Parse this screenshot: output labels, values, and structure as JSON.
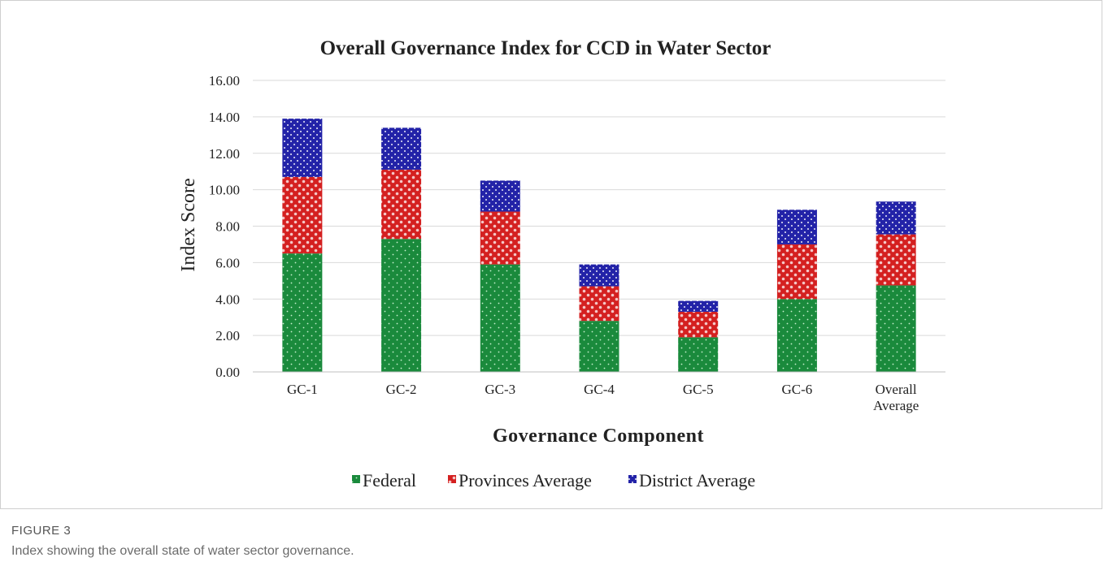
{
  "figure": {
    "label": "FIGURE 3",
    "caption": "Index showing the overall state of water sector governance."
  },
  "chart_data": {
    "type": "bar",
    "stacked": true,
    "title": "Overall Governance Index for CCD in Water Sector",
    "xlabel": "Governance Component",
    "ylabel": "Index Score",
    "ylim": [
      0,
      16
    ],
    "yticks": [
      "0.00",
      "2.00",
      "4.00",
      "6.00",
      "8.00",
      "10.00",
      "12.00",
      "14.00",
      "16.00"
    ],
    "grid": true,
    "legend_position": "bottom",
    "categories": [
      "GC-1",
      "GC-2",
      "GC-3",
      "GC-4",
      "GC-5",
      "GC-6",
      "Overall Average"
    ],
    "series": [
      {
        "name": "Federal",
        "color": "#1a8a3c",
        "pattern": "dots",
        "values": [
          6.5,
          7.3,
          5.9,
          2.8,
          1.9,
          4.0,
          4.75
        ]
      },
      {
        "name": "Provinces Average",
        "color": "#d42020",
        "pattern": "circles",
        "values": [
          4.2,
          3.8,
          2.9,
          1.9,
          1.4,
          3.0,
          2.8
        ]
      },
      {
        "name": "District Average",
        "color": "#2323a8",
        "pattern": "checks",
        "values": [
          3.2,
          2.3,
          1.7,
          1.2,
          0.6,
          1.9,
          1.8
        ]
      }
    ]
  }
}
